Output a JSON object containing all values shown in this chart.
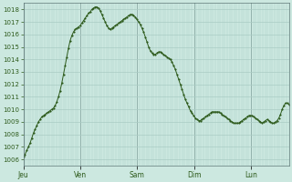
{
  "background_color": "#cce8e0",
  "plot_bg_color": "#cce8e0",
  "line_color": "#2d5a1b",
  "marker_color": "#2d5a1b",
  "grid_color": "#aaccc4",
  "axis_label_color": "#2d5a1b",
  "tick_label_color": "#2d5a1b",
  "ylim": [
    1005.5,
    1018.5
  ],
  "yticks": [
    1006,
    1007,
    1008,
    1009,
    1010,
    1011,
    1012,
    1013,
    1014,
    1015,
    1016,
    1017,
    1018
  ],
  "day_labels": [
    "Jeu",
    "Ven",
    "Sam",
    "Dim",
    "Lun"
  ],
  "day_positions": [
    0,
    24,
    48,
    72,
    96
  ],
  "total_hours": 112,
  "pressure_values": [
    1006.2,
    1006.4,
    1006.7,
    1007.0,
    1007.3,
    1007.7,
    1008.1,
    1008.4,
    1008.7,
    1009.0,
    1009.2,
    1009.4,
    1009.5,
    1009.6,
    1009.7,
    1009.8,
    1009.9,
    1010.0,
    1010.1,
    1010.3,
    1010.6,
    1011.0,
    1011.5,
    1012.1,
    1012.8,
    1013.5,
    1014.2,
    1014.9,
    1015.5,
    1015.9,
    1016.2,
    1016.4,
    1016.5,
    1016.6,
    1016.7,
    1016.9,
    1017.1,
    1017.3,
    1017.5,
    1017.7,
    1017.8,
    1018.0,
    1018.1,
    1018.2,
    1018.2,
    1018.1,
    1017.9,
    1017.6,
    1017.3,
    1017.0,
    1016.7,
    1016.5,
    1016.4,
    1016.5,
    1016.6,
    1016.7,
    1016.8,
    1016.9,
    1017.0,
    1017.1,
    1017.2,
    1017.3,
    1017.4,
    1017.5,
    1017.6,
    1017.6,
    1017.5,
    1017.4,
    1017.2,
    1017.0,
    1016.8,
    1016.5,
    1016.2,
    1015.8,
    1015.4,
    1015.0,
    1014.7,
    1014.5,
    1014.4,
    1014.4,
    1014.5,
    1014.6,
    1014.6,
    1014.5,
    1014.4,
    1014.3,
    1014.2,
    1014.1,
    1014.0,
    1013.8,
    1013.5,
    1013.2,
    1012.8,
    1012.4,
    1012.0,
    1011.6,
    1011.2,
    1010.8,
    1010.5,
    1010.2,
    1009.9,
    1009.7,
    1009.5,
    1009.3,
    1009.2,
    1009.1,
    1009.1,
    1009.2,
    1009.3,
    1009.4,
    1009.5,
    1009.6,
    1009.7,
    1009.8,
    1009.8,
    1009.8,
    1009.8,
    1009.8,
    1009.7,
    1009.6,
    1009.5,
    1009.4,
    1009.3,
    1009.2,
    1009.1,
    1009.0,
    1008.9,
    1008.9,
    1008.9,
    1008.9,
    1009.0,
    1009.1,
    1009.2,
    1009.3,
    1009.4,
    1009.5,
    1009.5,
    1009.5,
    1009.4,
    1009.3,
    1009.2,
    1009.1,
    1009.0,
    1008.9,
    1009.0,
    1009.1,
    1009.2,
    1009.1,
    1009.0,
    1008.9,
    1008.9,
    1009.0,
    1009.1,
    1009.3,
    1009.6,
    1010.0,
    1010.3,
    1010.5,
    1010.5,
    1010.4
  ]
}
